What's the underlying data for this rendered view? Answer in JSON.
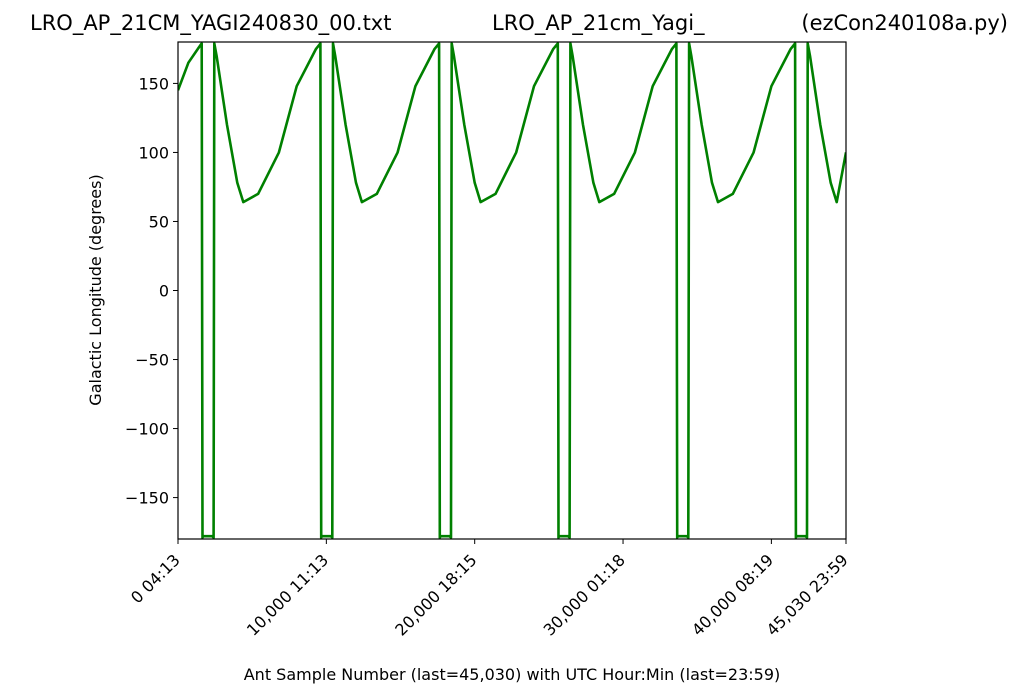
{
  "chart_data": {
    "type": "line",
    "title": {
      "left": "LRO_AP_21CM_YAGI240830_00.txt",
      "center": "LRO_AP_21cm_Yagi_",
      "right": "(ezCon240108a.py)"
    },
    "xlabel": "Ant Sample Number (last=45,030) with UTC Hour:Min (last=23:59)",
    "ylabel": "Galactic Longitude (degrees)",
    "xlim": [
      0,
      45030
    ],
    "ylim": [
      -180,
      180
    ],
    "x_ticks": [
      {
        "value": 0,
        "label": "0  04:13"
      },
      {
        "value": 10000,
        "label": "10,000  11:13"
      },
      {
        "value": 20000,
        "label": "20,000  18:15"
      },
      {
        "value": 30000,
        "label": "30,000  01:18"
      },
      {
        "value": 40000,
        "label": "40,000  08:19"
      },
      {
        "value": 45030,
        "label": "45,030  23:59"
      }
    ],
    "y_ticks": [
      {
        "value": 150,
        "label": "150"
      },
      {
        "value": 100,
        "label": "100"
      },
      {
        "value": 50,
        "label": "50"
      },
      {
        "value": 0,
        "label": "0"
      },
      {
        "value": -50,
        "label": "−50"
      },
      {
        "value": -100,
        "label": "−100"
      },
      {
        "value": -150,
        "label": "−150"
      }
    ],
    "grid": false,
    "series": [
      {
        "color": "#008000",
        "x": [
          0,
          700,
          1400,
          1600,
          1650,
          1700,
          2300,
          2400,
          2450,
          2600,
          3300,
          4000,
          4400,
          5400,
          6800,
          8000,
          9300,
          9600,
          9650,
          9700,
          10300,
          10400,
          10450,
          10600,
          11300,
          12000,
          12400,
          13400,
          14800,
          16000,
          17300,
          17600,
          17650,
          17700,
          18300,
          18400,
          18450,
          18600,
          19300,
          20000,
          20400,
          21400,
          22800,
          24000,
          25300,
          25600,
          25650,
          25700,
          26300,
          26400,
          26450,
          26600,
          27300,
          28000,
          28400,
          29400,
          30800,
          32000,
          33300,
          33600,
          33650,
          33700,
          34300,
          34400,
          34450,
          34600,
          35300,
          36000,
          36400,
          37400,
          38800,
          40000,
          41300,
          41600,
          41650,
          41700,
          42300,
          42400,
          42450,
          42600,
          43300,
          44000,
          44400,
          45030
        ],
        "y": [
          145,
          165,
          176,
          179,
          -179,
          -178,
          -178,
          -179,
          179,
          170,
          120,
          78,
          64,
          70,
          100,
          148,
          175,
          179,
          -179,
          -178,
          -178,
          -179,
          179,
          170,
          120,
          78,
          64,
          70,
          100,
          148,
          175,
          179,
          -179,
          -178,
          -178,
          -179,
          179,
          170,
          120,
          78,
          64,
          70,
          100,
          148,
          175,
          179,
          -179,
          -178,
          -178,
          -179,
          179,
          170,
          120,
          78,
          64,
          70,
          100,
          148,
          175,
          179,
          -179,
          -178,
          -178,
          -179,
          179,
          170,
          120,
          78,
          64,
          70,
          100,
          148,
          175,
          179,
          -179,
          -178,
          -178,
          -179,
          179,
          170,
          120,
          78,
          64,
          100
        ]
      }
    ]
  }
}
